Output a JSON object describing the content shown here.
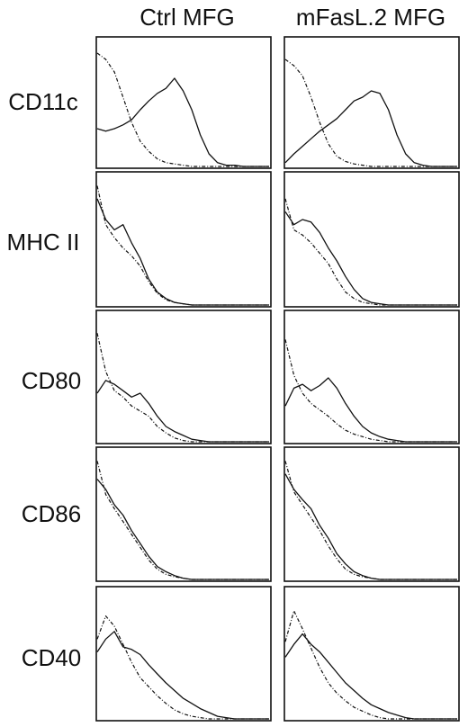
{
  "chart_data": {
    "type": "line",
    "title": "",
    "xlabel": "",
    "ylabel": "",
    "xlim": [
      0,
      100
    ],
    "ylim": [
      0,
      100
    ],
    "columns": [
      "Ctrl MFG",
      "mFasL.2 MFG"
    ],
    "rows": [
      "CD11c",
      "MHC II",
      "CD80",
      "CD86",
      "CD40"
    ],
    "x": [
      0,
      5,
      10,
      15,
      20,
      25,
      30,
      35,
      40,
      45,
      50,
      55,
      60,
      65,
      70,
      75,
      80,
      85,
      90,
      95,
      100
    ],
    "series_styles": [
      "solid",
      "dashed"
    ],
    "panels": [
      {
        "row": "CD11c",
        "column": "Ctrl MFG",
        "series": [
          {
            "style": "solid",
            "values": [
              30,
              28,
              30,
              33,
              37,
              45,
              52,
              58,
              62,
              70,
              60,
              45,
              25,
              10,
              3,
              1,
              1,
              0,
              0,
              0,
              0
            ]
          },
          {
            "style": "dashed",
            "values": [
              90,
              85,
              75,
              55,
              35,
              20,
              12,
              6,
              3,
              2,
              1,
              0,
              0,
              0,
              0,
              0,
              0,
              0,
              0,
              0,
              0
            ]
          }
        ]
      },
      {
        "row": "CD11c",
        "column": "mFasL.2 MFG",
        "series": [
          {
            "style": "solid",
            "values": [
              3,
              10,
              16,
              22,
              28,
              33,
              38,
              45,
              52,
              55,
              60,
              58,
              45,
              25,
              10,
              3,
              1,
              0,
              0,
              0,
              0
            ]
          },
          {
            "style": "dashed",
            "values": [
              85,
              80,
              72,
              55,
              35,
              18,
              8,
              4,
              2,
              1,
              0,
              0,
              0,
              0,
              0,
              0,
              0,
              0,
              0,
              0,
              0
            ]
          }
        ]
      },
      {
        "row": "MHC II",
        "column": "Ctrl MFG",
        "series": [
          {
            "style": "solid",
            "values": [
              82,
              66,
              58,
              62,
              48,
              36,
              20,
              10,
              5,
              2,
              1,
              0,
              0,
              0,
              0,
              0,
              0,
              0,
              0,
              0,
              0
            ]
          },
          {
            "style": "dashed",
            "values": [
              92,
              62,
              52,
              44,
              38,
              30,
              18,
              9,
              4,
              2,
              1,
              0,
              0,
              0,
              0,
              0,
              0,
              0,
              0,
              0,
              0
            ]
          }
        ]
      },
      {
        "row": "MHC II",
        "column": "mFasL.2 MFG",
        "series": [
          {
            "style": "solid",
            "values": [
              72,
              62,
              66,
              64,
              56,
              44,
              34,
              22,
              12,
              5,
              2,
              1,
              0,
              0,
              0,
              0,
              0,
              0,
              0,
              0,
              0
            ]
          },
          {
            "style": "dashed",
            "values": [
              82,
              58,
              54,
              48,
              40,
              32,
              20,
              10,
              5,
              2,
              1,
              0,
              0,
              0,
              0,
              0,
              0,
              0,
              0,
              0,
              0
            ]
          }
        ]
      },
      {
        "row": "CD80",
        "column": "Ctrl MFG",
        "series": [
          {
            "style": "solid",
            "values": [
              38,
              48,
              45,
              40,
              35,
              38,
              30,
              20,
              12,
              8,
              5,
              2,
              1,
              0,
              0,
              0,
              0,
              0,
              0,
              0,
              0
            ]
          },
          {
            "style": "dashed",
            "values": [
              85,
              55,
              40,
              35,
              28,
              24,
              20,
              12,
              7,
              3,
              1,
              0,
              0,
              0,
              0,
              0,
              0,
              0,
              0,
              0,
              0
            ]
          }
        ]
      },
      {
        "row": "CD80",
        "column": "mFasL.2 MFG",
        "series": [
          {
            "style": "solid",
            "values": [
              28,
              42,
              45,
              40,
              44,
              50,
              42,
              30,
              20,
              12,
              7,
              4,
              2,
              1,
              0,
              0,
              0,
              0,
              0,
              0,
              0
            ]
          },
          {
            "style": "dashed",
            "values": [
              80,
              52,
              38,
              30,
              25,
              20,
              14,
              9,
              6,
              4,
              2,
              1,
              0,
              0,
              0,
              0,
              0,
              0,
              0,
              0,
              0
            ]
          }
        ]
      },
      {
        "row": "CD86",
        "column": "Ctrl MFG",
        "series": [
          {
            "style": "solid",
            "values": [
              78,
              70,
              58,
              50,
              38,
              28,
              18,
              10,
              6,
              3,
              1,
              0,
              0,
              0,
              0,
              0,
              0,
              0,
              0,
              0,
              0
            ]
          },
          {
            "style": "dashed",
            "values": [
              92,
              66,
              55,
              45,
              35,
              25,
              15,
              8,
              4,
              2,
              1,
              0,
              0,
              0,
              0,
              0,
              0,
              0,
              0,
              0,
              0
            ]
          }
        ]
      },
      {
        "row": "CD86",
        "column": "mFasL.2 MFG",
        "series": [
          {
            "style": "solid",
            "values": [
              82,
              70,
              62,
              55,
              42,
              32,
              20,
              12,
              6,
              3,
              1,
              0,
              0,
              0,
              0,
              0,
              0,
              0,
              0,
              0,
              0
            ]
          },
          {
            "style": "dashed",
            "values": [
              92,
              68,
              58,
              48,
              38,
              26,
              16,
              8,
              4,
              2,
              1,
              0,
              0,
              0,
              0,
              0,
              0,
              0,
              0,
              0,
              0
            ]
          }
        ]
      },
      {
        "row": "CD40",
        "column": "Ctrl MFG",
        "series": [
          {
            "style": "solid",
            "values": [
              52,
              62,
              68,
              56,
              54,
              50,
              42,
              35,
              28,
              22,
              16,
              12,
              8,
              5,
              2,
              1,
              0,
              0,
              0,
              0,
              0
            ]
          },
          {
            "style": "dashed",
            "values": [
              62,
              80,
              72,
              58,
              44,
              32,
              25,
              18,
              12,
              7,
              4,
              2,
              1,
              0,
              0,
              0,
              0,
              0,
              0,
              0,
              0
            ]
          }
        ]
      },
      {
        "row": "CD40",
        "column": "mFasL.2 MFG",
        "series": [
          {
            "style": "solid",
            "values": [
              48,
              58,
              66,
              58,
              52,
              44,
              36,
              28,
              22,
              16,
              11,
              8,
              5,
              3,
              1,
              0,
              0,
              0,
              0,
              0,
              0
            ]
          },
          {
            "style": "dashed",
            "values": [
              60,
              84,
              70,
              55,
              40,
              28,
              20,
              14,
              9,
              6,
              3,
              1,
              0,
              0,
              0,
              0,
              0,
              0,
              0,
              0,
              0
            ]
          }
        ]
      }
    ]
  }
}
